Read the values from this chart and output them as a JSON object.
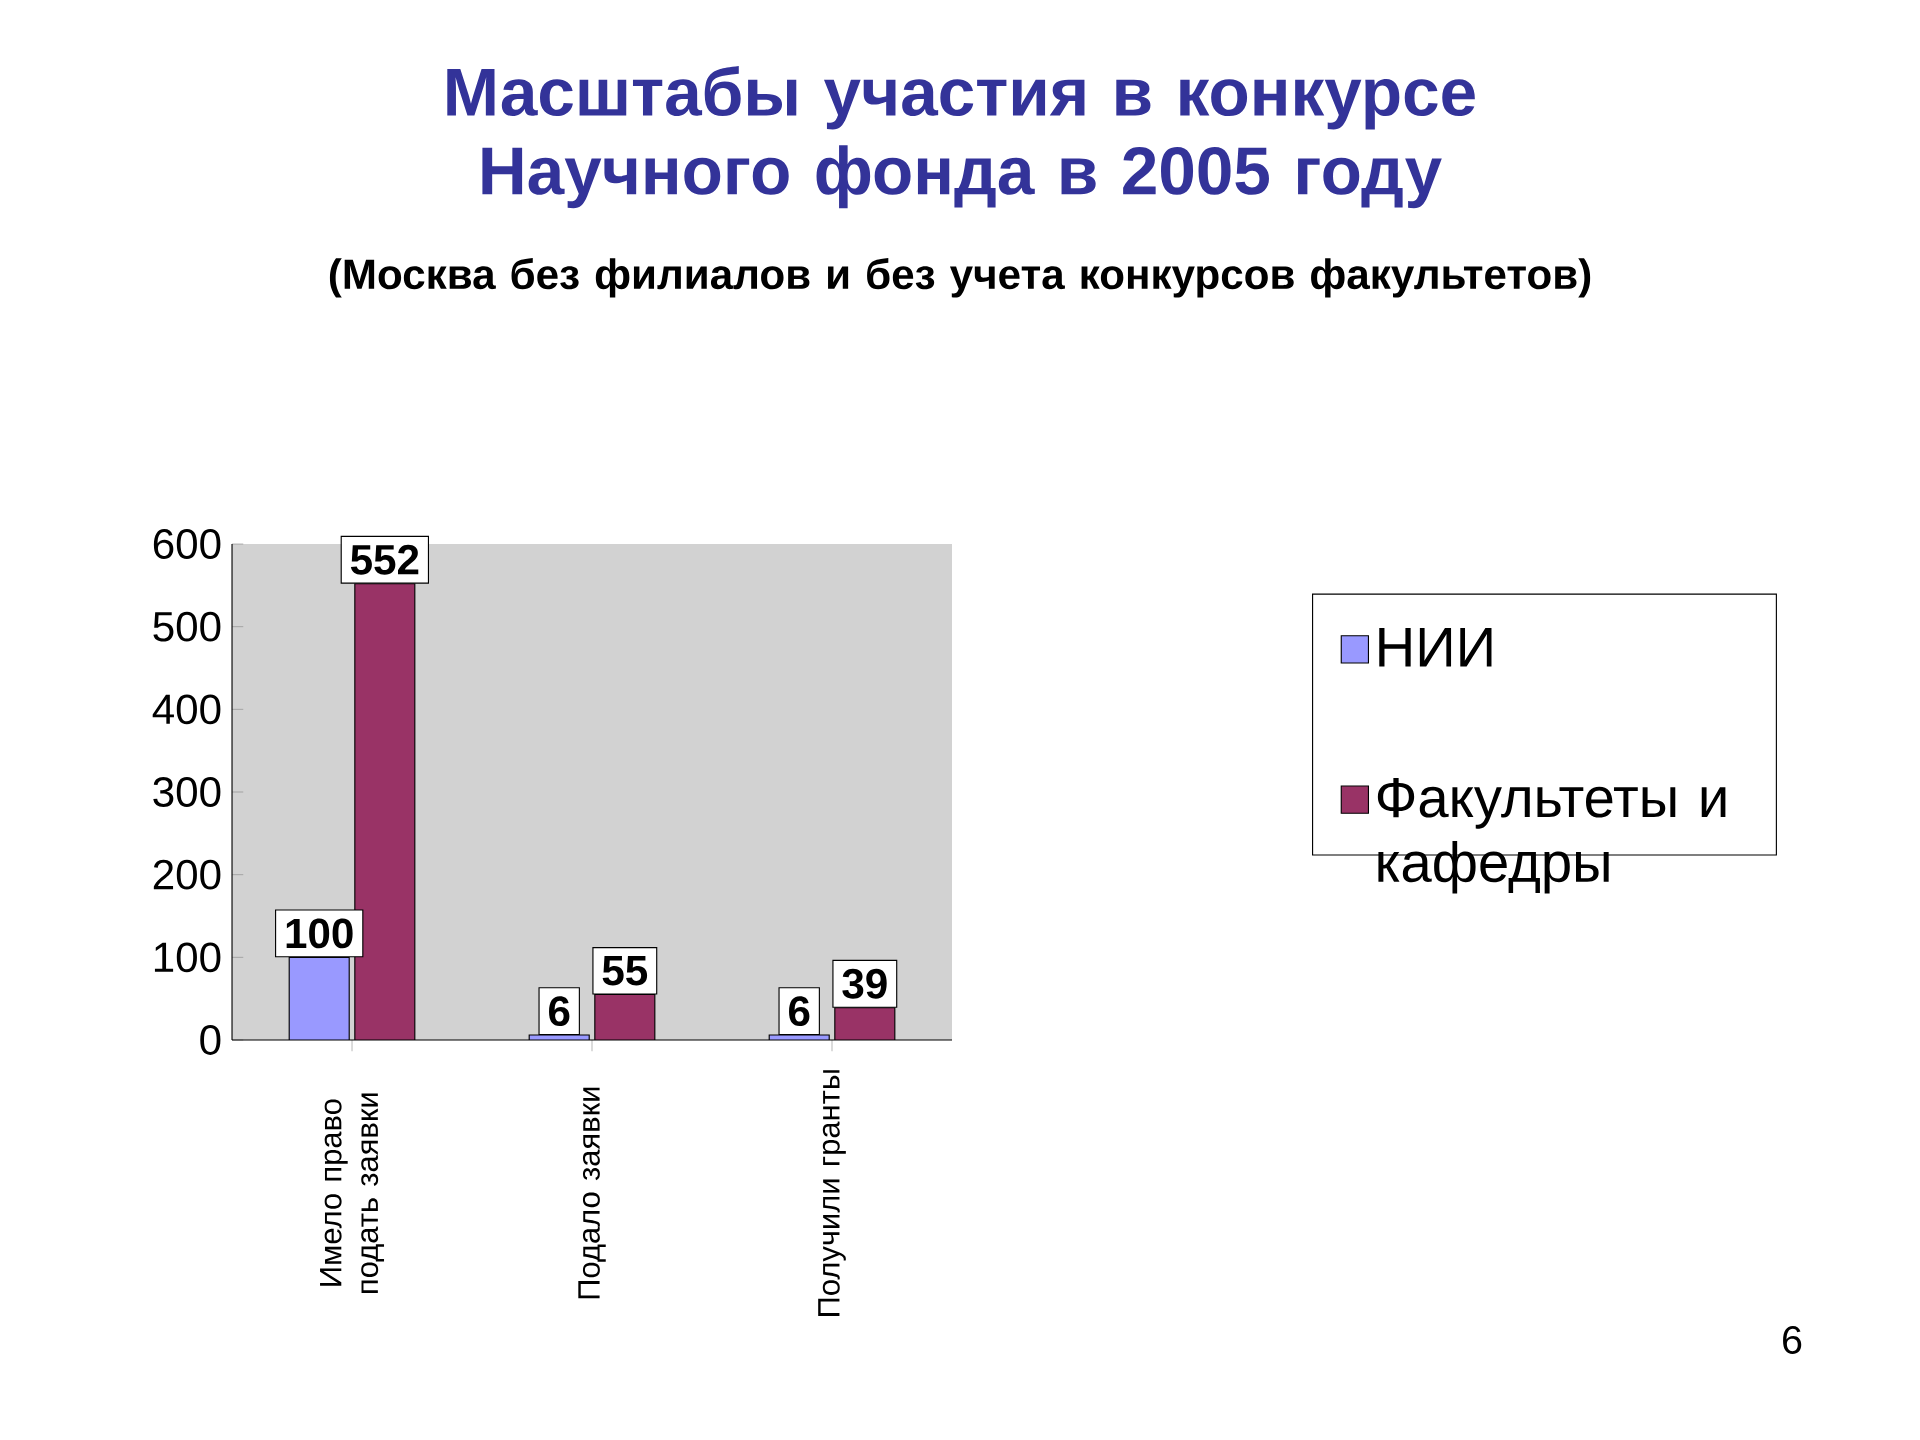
{
  "chart_data": {
    "type": "bar",
    "title": "Масштабы участия в конкурсе Научного фонда в 2005 году",
    "subtitle": "(Москва без филиалов и без учета конкурсов факультетов)",
    "categories": [
      "Имело право подать заявки",
      "Подало заявки",
      "Получили гранты"
    ],
    "series": [
      {
        "name": "НИИ",
        "color": "#9999ff",
        "values": [
          100,
          6,
          6
        ]
      },
      {
        "name": "Факультеты и кафедры",
        "color": "#993366",
        "values": [
          552,
          55,
          39
        ]
      }
    ],
    "ylim": [
      0,
      600
    ],
    "yticks": [
      0,
      100,
      200,
      300,
      400,
      500,
      600
    ],
    "data_labels": true,
    "legend": "right",
    "annotations": [
      "6"
    ]
  }
}
